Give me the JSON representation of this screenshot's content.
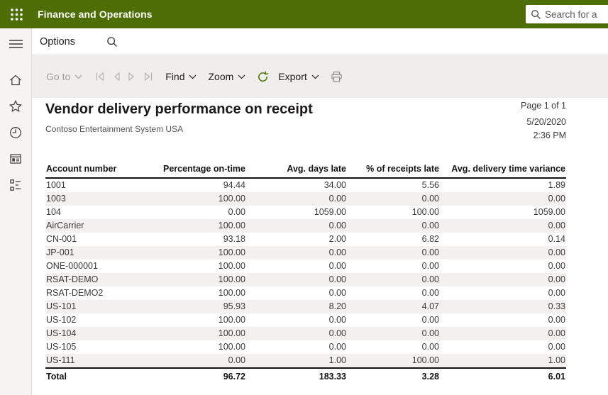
{
  "topbar": {
    "app_title": "Finance and Operations",
    "search_placeholder": "Search for a"
  },
  "appbar": {
    "options_label": "Options"
  },
  "sidebar": {
    "icons": [
      "hamburger-menu",
      "home",
      "favorites-star",
      "recent-clock",
      "workspaces-window",
      "modules-list"
    ]
  },
  "toolbar": {
    "goto_label": "Go to",
    "find_label": "Find",
    "zoom_label": "Zoom",
    "export_label": "Export",
    "icons": [
      "first-page",
      "previous-page",
      "next-page",
      "last-page",
      "refresh",
      "print"
    ]
  },
  "report": {
    "title": "Vendor delivery performance on receipt",
    "company": "Contoso Entertainment System USA",
    "page_info": "Page 1 of 1",
    "date": "5/20/2020",
    "time": "2:36 PM",
    "table": {
      "headers": [
        "Account number",
        "Percentage on-time",
        "Avg. days late",
        "% of receipts late",
        "Avg. delivery time variance"
      ],
      "rows": [
        [
          "1001",
          "94.44",
          "34.00",
          "5.56",
          "1.89"
        ],
        [
          "1003",
          "100.00",
          "0.00",
          "0.00",
          "0.00"
        ],
        [
          "104",
          "0.00",
          "1059.00",
          "100.00",
          "1059.00"
        ],
        [
          "AirCarrier",
          "100.00",
          "0.00",
          "0.00",
          "0.00"
        ],
        [
          "CN-001",
          "93.18",
          "2.00",
          "6.82",
          "0.14"
        ],
        [
          "JP-001",
          "100.00",
          "0.00",
          "0.00",
          "0.00"
        ],
        [
          "ONE-000001",
          "100.00",
          "0.00",
          "0.00",
          "0.00"
        ],
        [
          "RSAT-DEMO",
          "100.00",
          "0.00",
          "0.00",
          "0.00"
        ],
        [
          "RSAT-DEMO2",
          "100.00",
          "0.00",
          "0.00",
          "0.00"
        ],
        [
          "US-101",
          "95.93",
          "8.20",
          "4.07",
          "0.33"
        ],
        [
          "US-102",
          "100.00",
          "0.00",
          "0.00",
          "0.00"
        ],
        [
          "US-104",
          "100.00",
          "0.00",
          "0.00",
          "0.00"
        ],
        [
          "US-105",
          "100.00",
          "0.00",
          "0.00",
          "0.00"
        ],
        [
          "US-111",
          "0.00",
          "1.00",
          "100.00",
          "1.00"
        ]
      ],
      "total_row": [
        "Total",
        "96.72",
        "183.33",
        "3.28",
        "6.01"
      ]
    }
  },
  "colors": {
    "brand_green": "#4c6e05",
    "toolbar_bg": "#f0eeec",
    "sidebar_bg": "#f5f4f1",
    "row_stripe": "#f2f1ef",
    "divider": "#e3e1de",
    "disabled_text": "#a29f9d"
  }
}
